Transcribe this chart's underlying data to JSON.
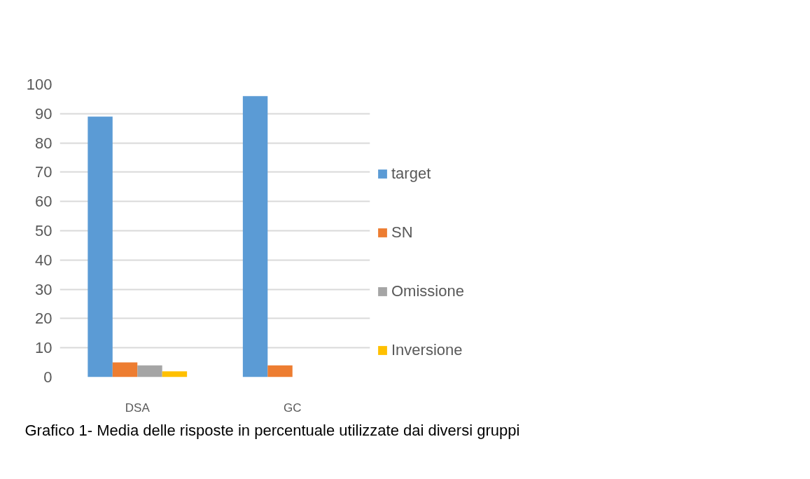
{
  "chart_data": {
    "type": "bar",
    "categories": [
      "DSA",
      "GC"
    ],
    "series": [
      {
        "name": "target",
        "color": "#5b9bd5",
        "values": [
          89,
          96
        ]
      },
      {
        "name": "SN",
        "color": "#ed7d31",
        "values": [
          5,
          4
        ]
      },
      {
        "name": "Omissione",
        "color": "#a5a5a5",
        "values": [
          4,
          0
        ]
      },
      {
        "name": "Inversione",
        "color": "#ffc000",
        "values": [
          2,
          0
        ]
      }
    ],
    "ylim": [
      0,
      100
    ],
    "yticks": [
      0,
      10,
      20,
      30,
      40,
      50,
      60,
      70,
      80,
      90,
      100
    ],
    "grid": "y",
    "legend": "right",
    "annotations": [
      "Grafico 1- Media delle risposte in percentuale utilizzate dai diversi gruppi"
    ]
  }
}
